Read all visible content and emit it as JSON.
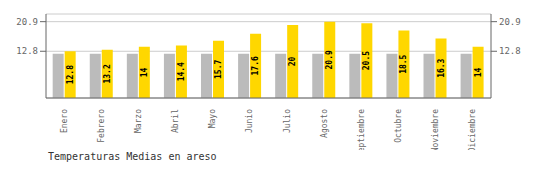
{
  "chart_data": {
    "type": "bar",
    "title": "Temperaturas Medias en areso",
    "categories": [
      "Enero",
      "Febrero",
      "Marzo",
      "Abril",
      "Mayo",
      "Junio",
      "Julio",
      "Agosto",
      "Septiembre",
      "Octubre",
      "Noviembre",
      "Diciembre"
    ],
    "series": [
      {
        "color": "#BBBBBB",
        "values": [
          12.1,
          12.1,
          12.1,
          12.1,
          12.1,
          12.1,
          12.1,
          12.1,
          12.1,
          12.1,
          12.1,
          12.1
        ]
      },
      {
        "color": "#FFD700",
        "values": [
          12.8,
          13.2,
          14.0,
          14.4,
          15.7,
          17.6,
          20.0,
          20.9,
          20.5,
          18.5,
          16.3,
          14.0
        ],
        "data_labels": true
      }
    ],
    "ylim": [
      0,
      23.0
    ],
    "yticks": [
      12.8,
      20.9
    ],
    "y2lim": [
      0,
      23.0
    ],
    "y2ticks": [
      12.8,
      20.9
    ],
    "grid": true
  }
}
